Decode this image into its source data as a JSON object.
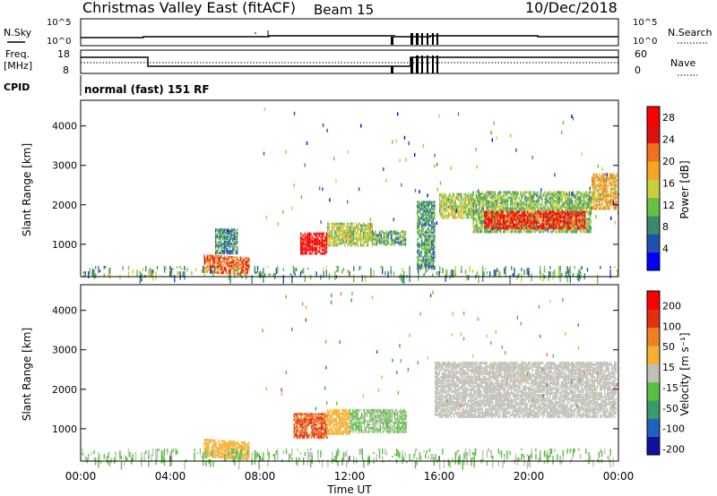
{
  "header": {
    "title": "Christmas Valley East (fitACF)",
    "beam": "Beam 15",
    "date": "10/Dec/2018"
  },
  "labels": {
    "nsky": "N.Sky",
    "nsearch": "N.Search",
    "freq_line1": "Freq.",
    "freq_line2": "[MHz]",
    "nave": "Nave",
    "cpid": "CPID",
    "cpid_value": "normal (fast) 151 RF",
    "power_ylabel": "Slant Range [km]",
    "velocity_ylabel": "Slant Range [km]",
    "xlabel": "Time UT",
    "power_cb_label": "Power [dB]",
    "velocity_cb_label": "Velocity [m s⁻¹]"
  },
  "noise_axis": {
    "left_ticks": [
      "10^5",
      "10^0"
    ],
    "right_ticks": [
      "10^5",
      "10^0"
    ]
  },
  "freq_axis": {
    "left_ticks": [
      "18",
      "8"
    ],
    "right_ticks": [
      "60",
      "0"
    ]
  },
  "chart_data": [
    {
      "type": "heatmap",
      "name": "power",
      "xlabel": "Time UT",
      "ylabel": "Slant Range [km]",
      "x_ticks": [
        "00:00",
        "04:00",
        "08:00",
        "12:00",
        "16:00",
        "20:00",
        "00:00"
      ],
      "x_range_hours": [
        0,
        24
      ],
      "y_ticks": [
        1000,
        2000,
        3000,
        4000
      ],
      "y_range_km": [
        180,
        4650
      ],
      "colorbar": {
        "label": "Power [dB]",
        "ticks": [
          4,
          8,
          12,
          16,
          20,
          24,
          28
        ],
        "range": [
          0,
          30
        ],
        "colors": [
          "#0000ff",
          "#2050b0",
          "#3a8a6e",
          "#6abf47",
          "#c8d040",
          "#f5a623",
          "#f07020",
          "#e01010",
          "#ff0000"
        ]
      },
      "regions": [
        {
          "t0": 5.5,
          "t1": 7.5,
          "r0": 300,
          "r1": 750,
          "level": 22,
          "slope": -80
        },
        {
          "t0": 6.0,
          "t1": 7.0,
          "r0": 800,
          "r1": 1400,
          "level": 8,
          "slope": 0
        },
        {
          "t0": 9.8,
          "t1": 11.0,
          "r0": 800,
          "r1": 1300,
          "level": 28,
          "slope": 0
        },
        {
          "t0": 11.0,
          "t1": 13.0,
          "r0": 1000,
          "r1": 1550,
          "level": 14,
          "slope": 0
        },
        {
          "t0": 13.0,
          "t1": 14.5,
          "r0": 1000,
          "r1": 1350,
          "level": 10,
          "slope": 0
        },
        {
          "t0": 15.0,
          "t1": 15.8,
          "r0": 400,
          "r1": 2100,
          "level": 9,
          "slope": 0
        },
        {
          "t0": 16.0,
          "t1": 17.5,
          "r0": 1700,
          "r1": 2300,
          "level": 14,
          "slope": 0
        },
        {
          "t0": 17.5,
          "t1": 22.8,
          "r0": 1350,
          "r1": 2350,
          "level": 12,
          "slope": 0
        },
        {
          "t0": 18.0,
          "t1": 22.5,
          "r0": 1400,
          "r1": 1850,
          "level": 25,
          "slope": 0
        },
        {
          "t0": 22.8,
          "t1": 23.9,
          "r0": 1900,
          "r1": 2800,
          "level": 18,
          "slope": 0
        },
        {
          "t0": 0.0,
          "t1": 24.0,
          "r0": 180,
          "r1": 450,
          "level": 10,
          "slope": 0
        }
      ]
    },
    {
      "type": "heatmap",
      "name": "velocity",
      "xlabel": "Time UT",
      "ylabel": "Slant Range [km]",
      "x_ticks": [
        "00:00",
        "04:00",
        "08:00",
        "12:00",
        "16:00",
        "20:00",
        "00:00"
      ],
      "x_range_hours": [
        0,
        24
      ],
      "y_ticks": [
        1000,
        2000,
        3000,
        4000
      ],
      "y_range_km": [
        180,
        4650
      ],
      "colorbar": {
        "label": "Velocity [m s⁻¹]",
        "ticks": [
          200,
          100,
          50,
          15,
          -15,
          -50,
          -100,
          -200
        ],
        "range": [
          -250,
          250
        ],
        "colors": [
          "#1010a0",
          "#2060c0",
          "#3a9a6a",
          "#5ac040",
          "#c0c0b8",
          "#f5b030",
          "#f08020",
          "#e03010",
          "#ff0000"
        ]
      },
      "regions": [
        {
          "t0": 5.5,
          "t1": 7.5,
          "r0": 300,
          "r1": 750,
          "level": 60,
          "slope": -80
        },
        {
          "t0": 9.5,
          "t1": 11.0,
          "r0": 800,
          "r1": 1400,
          "level": 140,
          "slope": 0
        },
        {
          "t0": 11.0,
          "t1": 12.0,
          "r0": 900,
          "r1": 1500,
          "level": 50,
          "slope": 0
        },
        {
          "t0": 12.0,
          "t1": 14.5,
          "r0": 950,
          "r1": 1500,
          "level": -30,
          "slope": 0
        },
        {
          "t0": 15.8,
          "t1": 23.9,
          "r0": 1300,
          "r1": 2700,
          "level": 0,
          "slope": 0
        },
        {
          "t0": 0.0,
          "t1": 24.0,
          "r0": 180,
          "r1": 500,
          "level": -30,
          "slope": 0
        }
      ]
    }
  ]
}
